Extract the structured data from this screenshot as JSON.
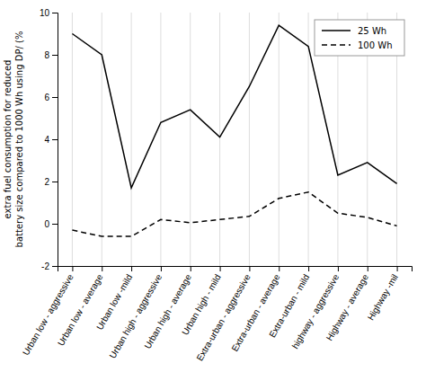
{
  "chart_data": {
    "type": "line",
    "categories": [
      "Urban low - aggressive",
      "Urban low - average",
      "Urban low -mild",
      "Urban high - aggressive",
      "Urban high - average",
      "Urban high - mild",
      "Extra-urban - aggressive",
      "Extra-urban - average",
      "Extra-urban - mild",
      "highway - aggressive",
      "Highway - average",
      "Highway -mil"
    ],
    "series": [
      {
        "name": "25 Wh",
        "color": "#000000",
        "line_style": "solid",
        "values": [
          9.0,
          8.0,
          1.7,
          4.8,
          5.4,
          4.1,
          6.5,
          9.4,
          8.4,
          2.3,
          2.9,
          1.9
        ]
      },
      {
        "name": "100 Wh",
        "color": "#000000",
        "line_style": "dashed",
        "values": [
          -0.3,
          -0.6,
          -0.6,
          0.2,
          0.05,
          0.2,
          0.35,
          1.2,
          1.5,
          0.5,
          0.3,
          -0.1
        ]
      }
    ],
    "ylabel": [
      "extra fuel consumption for reduced",
      "battery size compared to 1000 Wh using DP/ (%"
    ],
    "ylim": [
      -2,
      10
    ],
    "yticks": [
      -2,
      0,
      2,
      4,
      6,
      8,
      10
    ],
    "grid": "x",
    "legend": "upper right"
  }
}
